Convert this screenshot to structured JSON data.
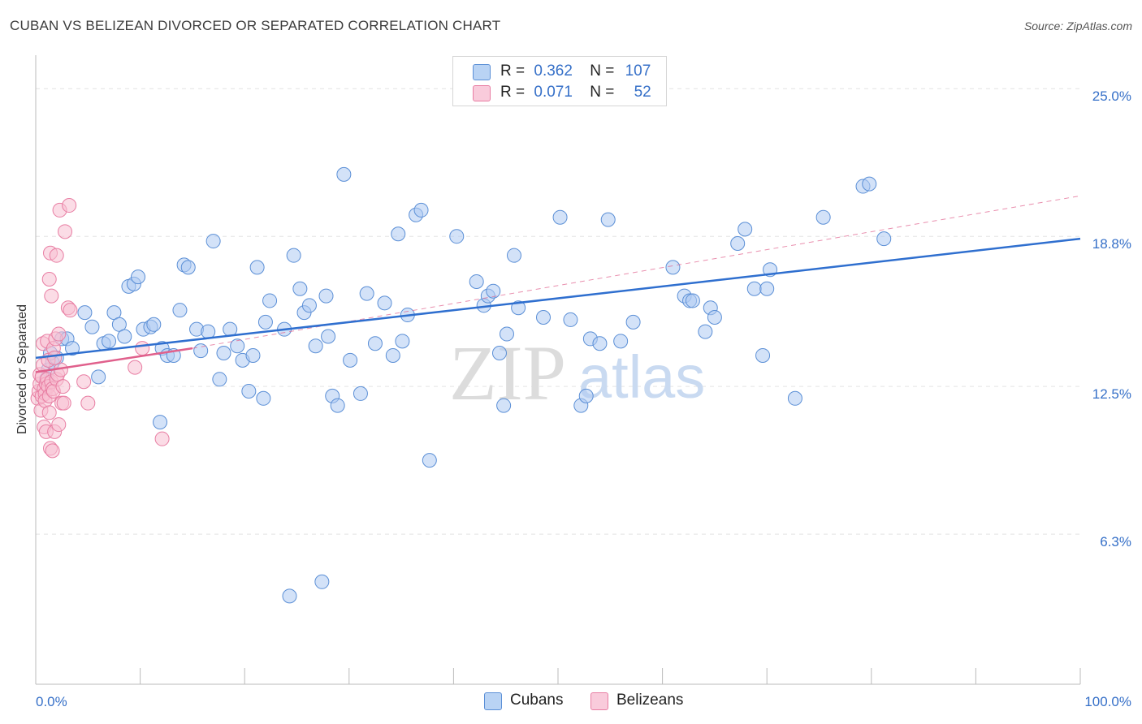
{
  "title": "CUBAN VS BELIZEAN DIVORCED OR SEPARATED CORRELATION CHART",
  "source": "Source: ZipAtlas.com",
  "watermark": {
    "zip": "ZIP",
    "atlas": "atlas"
  },
  "legend": {
    "rows": [
      {
        "r_label": "R =",
        "r_value": "0.362",
        "n_label": "N =",
        "n_value": "107"
      },
      {
        "r_label": "R =",
        "r_value": "0.071",
        "n_label": "N =",
        "n_value": "52"
      }
    ]
  },
  "colors": {
    "cubans_fill": "#aecbf2",
    "cubans_stroke": "#5b8fd6",
    "cubans_line": "#2f6fcf",
    "belizeans_fill": "#f7bfd1",
    "belizeans_stroke": "#e87ea3",
    "belizeans_line": "#e0608c",
    "axis_label": "#3670c8",
    "grid": "#e3e3e3"
  },
  "chart_data": {
    "type": "scatter",
    "title": "CUBAN VS BELIZEAN DIVORCED OR SEPARATED CORRELATION CHART",
    "xlabel": "",
    "ylabel": "Divorced or Separated",
    "xlim": [
      0,
      100
    ],
    "ylim": [
      0,
      26.2
    ],
    "x_tick_labels": [
      "0.0%",
      "100.0%"
    ],
    "y_ticks": [
      6.3,
      12.5,
      18.8,
      25.0
    ],
    "y_tick_labels": [
      "6.3%",
      "12.5%",
      "18.8%",
      "25.0%"
    ],
    "grid": "horizontal dashed",
    "legend_placement": "top-center and bottom",
    "series": [
      {
        "name": "Cubans",
        "r": 0.362,
        "n": 107,
        "trend": {
          "x": [
            0,
            100
          ],
          "y": [
            13.7,
            18.7
          ]
        },
        "points": [
          [
            1.0,
            12.8
          ],
          [
            1.2,
            13.2
          ],
          [
            1.6,
            13.5
          ],
          [
            2.0,
            13.7
          ],
          [
            2.5,
            14.5
          ],
          [
            3.0,
            14.5
          ],
          [
            3.5,
            14.1
          ],
          [
            4.7,
            15.6
          ],
          [
            5.4,
            15.0
          ],
          [
            6.0,
            12.9
          ],
          [
            6.5,
            14.3
          ],
          [
            7.0,
            14.4
          ],
          [
            7.5,
            15.6
          ],
          [
            8.0,
            15.1
          ],
          [
            8.5,
            14.6
          ],
          [
            8.9,
            16.7
          ],
          [
            9.4,
            16.8
          ],
          [
            9.8,
            17.1
          ],
          [
            10.3,
            14.9
          ],
          [
            11.0,
            15.0
          ],
          [
            11.3,
            15.1
          ],
          [
            11.9,
            11.0
          ],
          [
            12.1,
            14.1
          ],
          [
            12.6,
            13.8
          ],
          [
            13.2,
            13.8
          ],
          [
            13.8,
            15.7
          ],
          [
            14.2,
            17.6
          ],
          [
            14.6,
            17.5
          ],
          [
            15.4,
            14.9
          ],
          [
            15.8,
            14.0
          ],
          [
            16.5,
            14.8
          ],
          [
            17.0,
            18.6
          ],
          [
            17.6,
            12.8
          ],
          [
            18.0,
            13.9
          ],
          [
            18.6,
            14.9
          ],
          [
            19.3,
            14.2
          ],
          [
            19.8,
            13.6
          ],
          [
            20.4,
            12.3
          ],
          [
            20.8,
            13.8
          ],
          [
            21.2,
            17.5
          ],
          [
            21.8,
            12.0
          ],
          [
            22.0,
            15.2
          ],
          [
            22.4,
            16.1
          ],
          [
            23.8,
            14.9
          ],
          [
            24.3,
            3.7
          ],
          [
            24.7,
            18.0
          ],
          [
            25.3,
            16.6
          ],
          [
            25.7,
            15.6
          ],
          [
            26.2,
            15.9
          ],
          [
            26.8,
            14.2
          ],
          [
            27.4,
            4.3
          ],
          [
            27.8,
            16.3
          ],
          [
            28.0,
            14.6
          ],
          [
            28.4,
            12.1
          ],
          [
            28.9,
            11.7
          ],
          [
            29.5,
            21.4
          ],
          [
            30.1,
            13.6
          ],
          [
            31.1,
            12.2
          ],
          [
            31.7,
            16.4
          ],
          [
            32.5,
            14.3
          ],
          [
            33.4,
            16.0
          ],
          [
            34.2,
            13.8
          ],
          [
            34.7,
            18.9
          ],
          [
            35.1,
            14.4
          ],
          [
            35.6,
            15.5
          ],
          [
            36.4,
            19.7
          ],
          [
            36.9,
            19.9
          ],
          [
            37.7,
            9.4
          ],
          [
            40.3,
            18.8
          ],
          [
            42.2,
            16.9
          ],
          [
            42.9,
            15.9
          ],
          [
            43.3,
            16.3
          ],
          [
            43.8,
            16.5
          ],
          [
            44.4,
            13.9
          ],
          [
            44.8,
            11.7
          ],
          [
            45.1,
            14.7
          ],
          [
            45.8,
            18.0
          ],
          [
            46.2,
            15.8
          ],
          [
            48.6,
            15.4
          ],
          [
            50.2,
            19.6
          ],
          [
            51.2,
            15.3
          ],
          [
            52.2,
            11.7
          ],
          [
            52.7,
            12.1
          ],
          [
            53.1,
            14.5
          ],
          [
            54.0,
            14.3
          ],
          [
            54.8,
            19.5
          ],
          [
            56.0,
            14.4
          ],
          [
            57.2,
            15.2
          ],
          [
            61.0,
            17.5
          ],
          [
            62.1,
            16.3
          ],
          [
            62.6,
            16.1
          ],
          [
            62.9,
            16.1
          ],
          [
            64.1,
            14.8
          ],
          [
            64.6,
            15.8
          ],
          [
            65.0,
            15.4
          ],
          [
            67.2,
            18.5
          ],
          [
            67.9,
            19.1
          ],
          [
            68.8,
            16.6
          ],
          [
            70.0,
            16.6
          ],
          [
            70.3,
            17.4
          ],
          [
            69.6,
            13.8
          ],
          [
            75.4,
            19.6
          ],
          [
            79.2,
            20.9
          ],
          [
            79.8,
            21.0
          ],
          [
            81.2,
            18.7
          ],
          [
            72.7,
            12.0
          ],
          [
            1.4,
            13.9
          ]
        ]
      },
      {
        "name": "Belizeans",
        "r": 0.071,
        "n": 52,
        "trend": {
          "x": [
            0,
            15
          ],
          "y": [
            13.1,
            14.1
          ]
        },
        "trend_extended": {
          "x": [
            15,
            100
          ],
          "y": [
            14.1,
            20.5
          ]
        },
        "points": [
          [
            0.2,
            12.0
          ],
          [
            0.3,
            12.3
          ],
          [
            0.4,
            12.6
          ],
          [
            0.4,
            13.0
          ],
          [
            0.5,
            11.5
          ],
          [
            0.6,
            12.1
          ],
          [
            0.6,
            12.9
          ],
          [
            0.7,
            13.4
          ],
          [
            0.7,
            14.3
          ],
          [
            0.8,
            10.8
          ],
          [
            0.8,
            12.4
          ],
          [
            0.9,
            12.2
          ],
          [
            0.9,
            11.9
          ],
          [
            1.0,
            12.6
          ],
          [
            1.0,
            10.6
          ],
          [
            1.1,
            12.8
          ],
          [
            1.1,
            14.4
          ],
          [
            1.2,
            13.6
          ],
          [
            1.2,
            12.5
          ],
          [
            1.3,
            11.4
          ],
          [
            1.3,
            12.1
          ],
          [
            1.3,
            17.0
          ],
          [
            1.4,
            9.9
          ],
          [
            1.4,
            18.1
          ],
          [
            1.5,
            16.3
          ],
          [
            1.5,
            12.7
          ],
          [
            1.6,
            9.8
          ],
          [
            1.6,
            12.4
          ],
          [
            1.7,
            12.3
          ],
          [
            1.7,
            14.1
          ],
          [
            1.8,
            13.7
          ],
          [
            1.8,
            10.6
          ],
          [
            1.9,
            14.5
          ],
          [
            2.0,
            12.8
          ],
          [
            2.0,
            18.0
          ],
          [
            2.1,
            13.0
          ],
          [
            2.2,
            10.9
          ],
          [
            2.2,
            14.7
          ],
          [
            2.3,
            19.9
          ],
          [
            2.4,
            13.2
          ],
          [
            2.5,
            11.8
          ],
          [
            2.6,
            12.5
          ],
          [
            2.7,
            11.8
          ],
          [
            2.8,
            19.0
          ],
          [
            3.1,
            15.8
          ],
          [
            3.2,
            20.1
          ],
          [
            3.3,
            15.7
          ],
          [
            4.6,
            12.7
          ],
          [
            5.0,
            11.8
          ],
          [
            9.5,
            13.3
          ],
          [
            10.2,
            14.1
          ],
          [
            12.1,
            10.3
          ]
        ]
      }
    ]
  },
  "bottom_legend": {
    "items": [
      {
        "label": "Cubans"
      },
      {
        "label": "Belizeans"
      }
    ]
  }
}
